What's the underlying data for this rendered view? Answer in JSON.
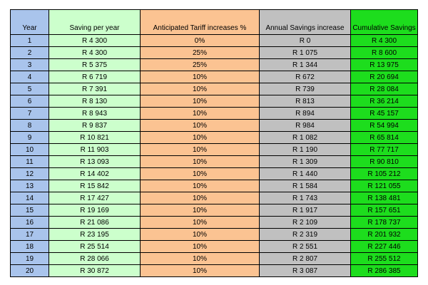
{
  "table": {
    "headers": [
      "Year",
      "Saving per year",
      "Anticipated Tariff increases %",
      "Annual Savings increase",
      "Cumulative Savings"
    ],
    "rows": [
      [
        "1",
        "R 4 300",
        "0%",
        "R 0",
        "R 4 300"
      ],
      [
        "2",
        "R 4 300",
        "25%",
        "R 1 075",
        "R 8 600"
      ],
      [
        "3",
        "R 5 375",
        "25%",
        "R 1 344",
        "R 13 975"
      ],
      [
        "4",
        "R 6 719",
        "10%",
        "R 672",
        "R 20 694"
      ],
      [
        "5",
        "R 7 391",
        "10%",
        "R 739",
        "R 28 084"
      ],
      [
        "6",
        "R 8 130",
        "10%",
        "R 813",
        "R 36 214"
      ],
      [
        "7",
        "R 8 943",
        "10%",
        "R 894",
        "R 45 157"
      ],
      [
        "8",
        "R 9 837",
        "10%",
        "R 984",
        "R 54 994"
      ],
      [
        "9",
        "R 10 821",
        "10%",
        "R 1 082",
        "R 65 814"
      ],
      [
        "10",
        "R 11 903",
        "10%",
        "R 1 190",
        "R 77 717"
      ],
      [
        "11",
        "R 13 093",
        "10%",
        "R 1 309",
        "R 90 810"
      ],
      [
        "12",
        "R 14 402",
        "10%",
        "R 1 440",
        "R 105 212"
      ],
      [
        "13",
        "R 15 842",
        "10%",
        "R 1 584",
        "R 121 055"
      ],
      [
        "14",
        "R 17 427",
        "10%",
        "R 1 743",
        "R 138 481"
      ],
      [
        "15",
        "R 19 169",
        "10%",
        "R 1 917",
        "R 157 651"
      ],
      [
        "16",
        "R 21 086",
        "10%",
        "R 2 109",
        "R 178 737"
      ],
      [
        "17",
        "R 23 195",
        "10%",
        "R 2 319",
        "R 201 932"
      ],
      [
        "18",
        "R 25 514",
        "10%",
        "R 2 551",
        "R 227 446"
      ],
      [
        "19",
        "R 28 066",
        "10%",
        "R 2 807",
        "R 255 512"
      ],
      [
        "20",
        "R 30 872",
        "10%",
        "R 3 087",
        "R 286 385"
      ]
    ]
  },
  "colors": {
    "year_column": "#a9c4ec",
    "saving_column": "#ccffcc",
    "tariff_column": "#fbc392",
    "annual_column": "#c0c0c0",
    "cumulative_column": "#1ddd1d"
  }
}
